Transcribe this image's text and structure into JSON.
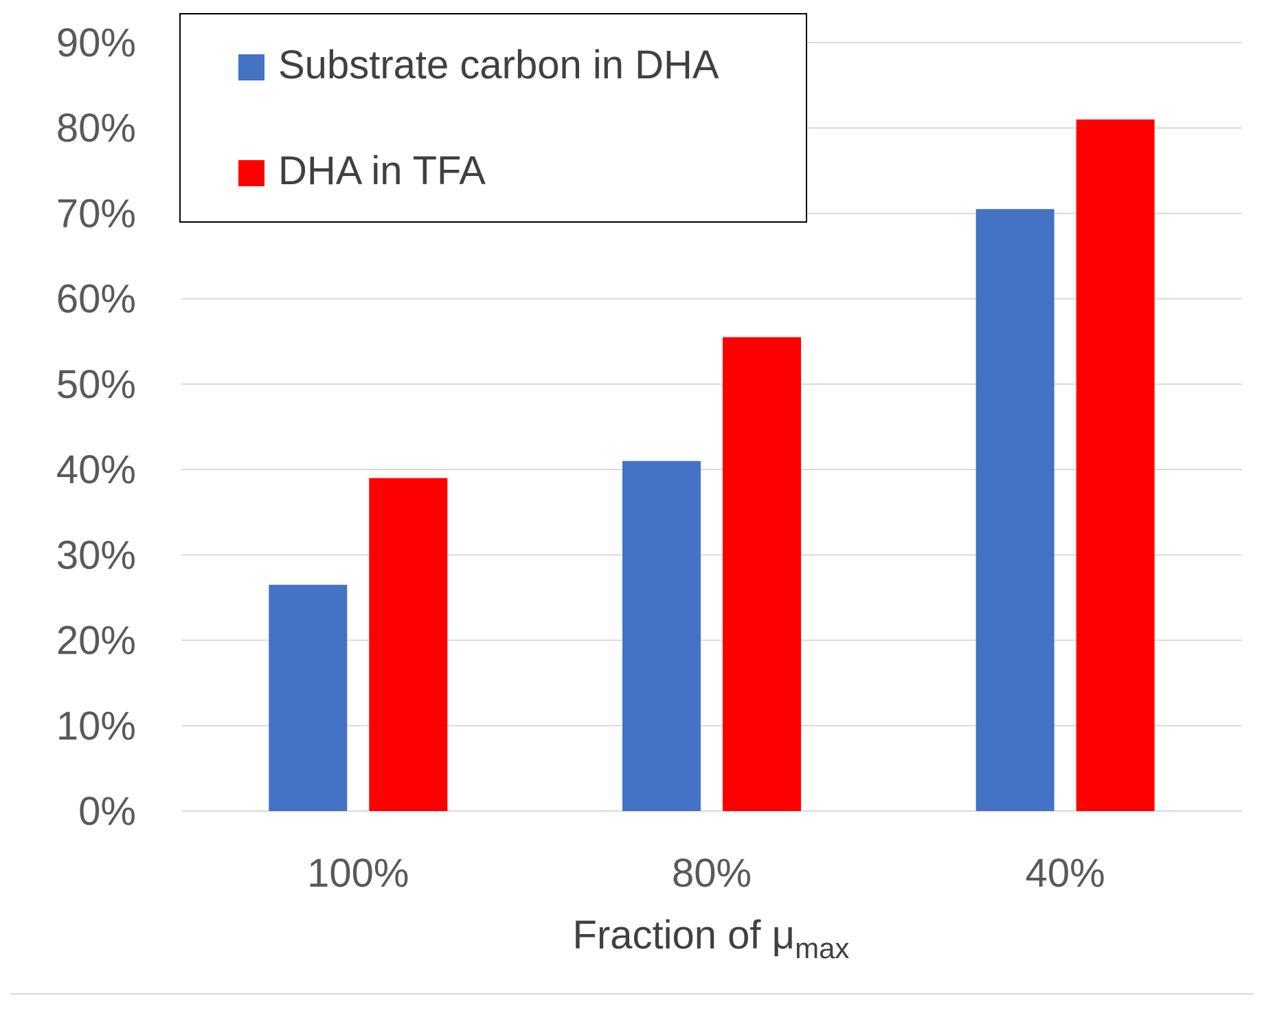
{
  "chart_data": {
    "type": "bar",
    "title": "",
    "categories": [
      "100%",
      "80%",
      "40%"
    ],
    "series": [
      {
        "name": "Substrate carbon in DHA",
        "color": "#4472C4",
        "values": [
          0.265,
          0.41,
          0.705
        ]
      },
      {
        "name": "DHA in TFA",
        "color": "#FF0000",
        "values": [
          0.39,
          0.555,
          0.81
        ]
      }
    ],
    "ylim": [
      0,
      0.9
    ],
    "yticks": [
      "0%",
      "10%",
      "20%",
      "30%",
      "40%",
      "50%",
      "60%",
      "70%",
      "80%",
      "90%"
    ],
    "xlabel": {
      "main": "Fraction of μ",
      "subscript": "max"
    },
    "ylabel": "",
    "grid": true,
    "legend_position": "top-left"
  }
}
